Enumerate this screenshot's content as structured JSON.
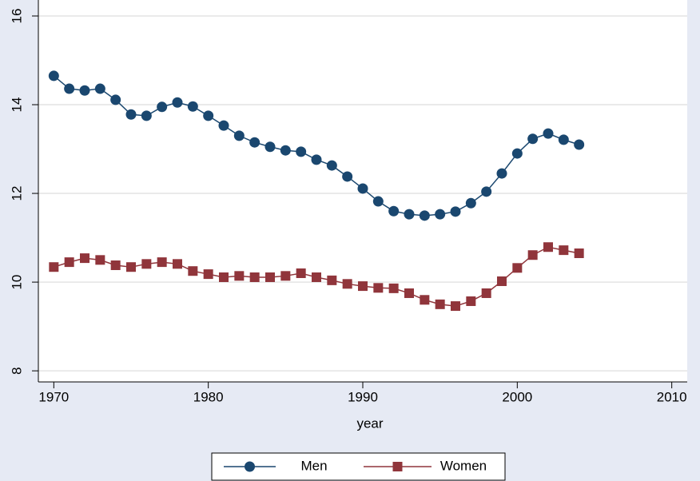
{
  "chart_data": {
    "type": "line",
    "x_label": "year",
    "x": [
      1970,
      1971,
      1972,
      1973,
      1974,
      1975,
      1976,
      1977,
      1978,
      1979,
      1980,
      1981,
      1982,
      1983,
      1984,
      1985,
      1986,
      1987,
      1988,
      1989,
      1990,
      1991,
      1992,
      1993,
      1994,
      1995,
      1996,
      1997,
      1998,
      1999,
      2000,
      2001,
      2002,
      2003,
      2004
    ],
    "series": [
      {
        "name": "Men",
        "color": "#1a476f",
        "marker": "circle",
        "values": [
          14.65,
          14.36,
          14.32,
          14.36,
          14.11,
          13.78,
          13.75,
          13.95,
          14.05,
          13.96,
          13.75,
          13.53,
          13.3,
          13.15,
          13.05,
          12.97,
          12.94,
          12.76,
          12.63,
          12.38,
          12.11,
          11.82,
          11.6,
          11.53,
          11.5,
          11.53,
          11.59,
          11.78,
          12.04,
          12.45,
          12.9,
          13.23,
          13.35,
          13.21,
          13.1
        ]
      },
      {
        "name": "Women",
        "color": "#90353b",
        "marker": "square",
        "values": [
          10.34,
          10.45,
          10.54,
          10.5,
          10.38,
          10.34,
          10.41,
          10.45,
          10.41,
          10.25,
          10.18,
          10.11,
          10.14,
          10.11,
          10.11,
          10.14,
          10.2,
          10.11,
          10.04,
          9.96,
          9.91,
          9.87,
          9.86,
          9.75,
          9.6,
          9.5,
          9.46,
          9.57,
          9.75,
          10.02,
          10.32,
          10.61,
          10.79,
          10.72,
          10.65
        ]
      }
    ],
    "xlim": [
      1969,
      2011
    ],
    "xticks": [
      1970,
      1980,
      1990,
      2000,
      2010
    ],
    "ylim": [
      7.75,
      16.27
    ],
    "yticks": [
      8,
      10,
      12,
      14,
      16
    ],
    "grid": true,
    "legend": "bottom"
  }
}
